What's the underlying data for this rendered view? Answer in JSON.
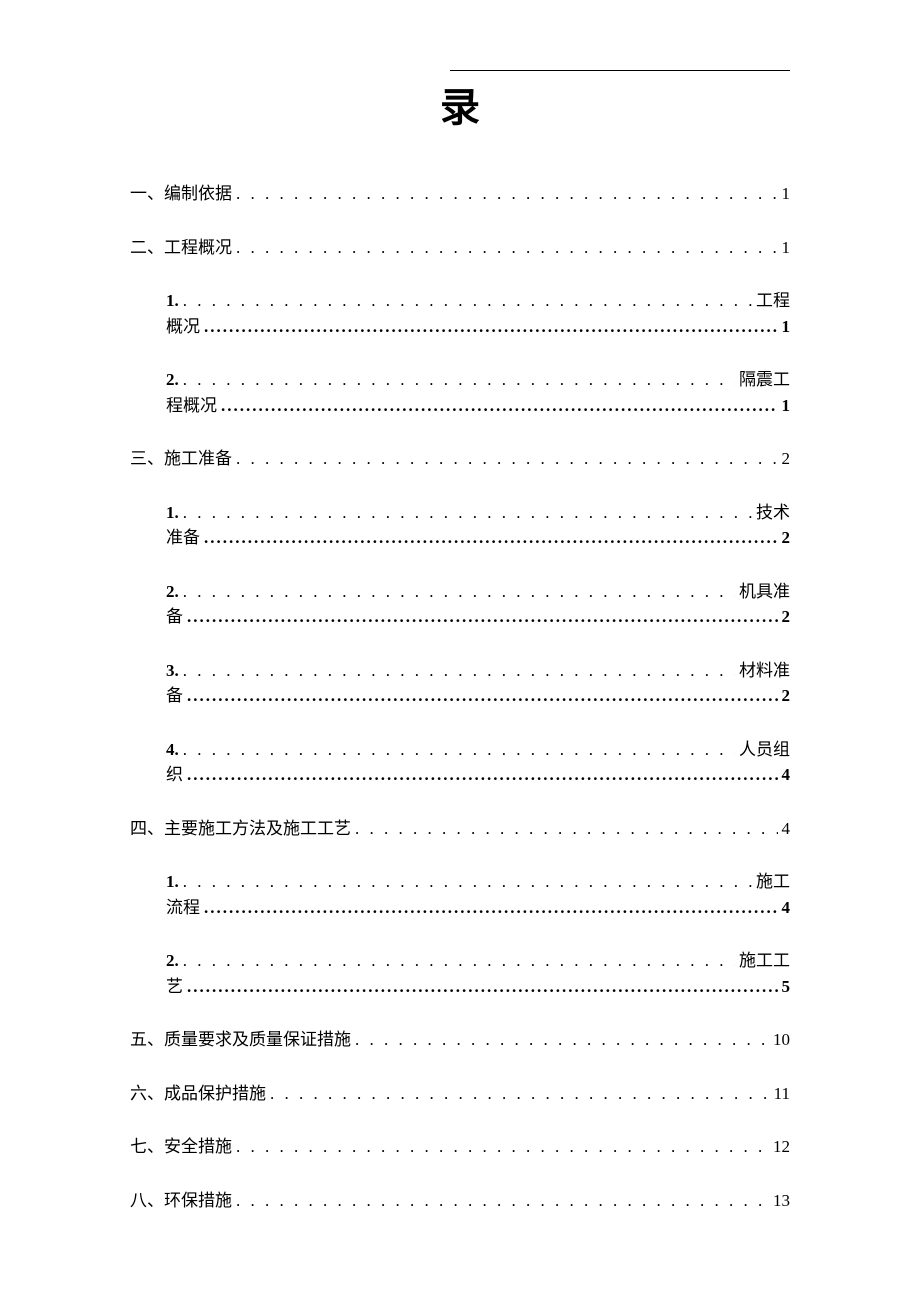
{
  "title": "录",
  "colors": {
    "background": "#ffffff",
    "text": "#000000",
    "rule": "#000000"
  },
  "typography": {
    "title_fontsize": 40,
    "entry_fontsize": 17,
    "font_family": "SimSun"
  },
  "toc": [
    {
      "type": "simple",
      "level": 1,
      "label": "一、编制依据",
      "page": "1"
    },
    {
      "type": "simple",
      "level": 1,
      "label": "二、工程概况",
      "page": "1"
    },
    {
      "type": "wrap",
      "level": 2,
      "num": "1.",
      "suffix": "工程",
      "cont": "概况",
      "page": "1"
    },
    {
      "type": "wrap",
      "level": 2,
      "num": "2.",
      "suffix": "隔震工",
      "cont": "程概况",
      "page": "1"
    },
    {
      "type": "simple",
      "level": 1,
      "label": "三、施工准备",
      "page": "2"
    },
    {
      "type": "wrap",
      "level": 2,
      "num": "1.",
      "suffix": "技术",
      "cont": "准备",
      "page": "2"
    },
    {
      "type": "wrap",
      "level": 2,
      "num": "2.",
      "suffix": "机具准",
      "cont": "备",
      "page": "2"
    },
    {
      "type": "wrap",
      "level": 2,
      "num": "3.",
      "suffix": "材料准",
      "cont": "备",
      "page": "2"
    },
    {
      "type": "wrap",
      "level": 2,
      "num": "4.",
      "suffix": "人员组",
      "cont": "织",
      "page": "4"
    },
    {
      "type": "simple",
      "level": 1,
      "label": "四、主要施工方法及施工工艺",
      "page": "4"
    },
    {
      "type": "wrap",
      "level": 2,
      "num": "1.",
      "suffix": "施工",
      "cont": "流程",
      "page": "4"
    },
    {
      "type": "wrap",
      "level": 2,
      "num": "2.",
      "suffix": "施工工",
      "cont": "艺",
      "page": "5"
    },
    {
      "type": "simple",
      "level": 1,
      "label": "五、质量要求及质量保证措施",
      "page": "10"
    },
    {
      "type": "simple",
      "level": 1,
      "label": "六、成品保护措施",
      "page": "11"
    },
    {
      "type": "simple",
      "level": 1,
      "label": "七、安全措施",
      "page": "12"
    },
    {
      "type": "simple",
      "level": 1,
      "label": "八、环保措施",
      "page": "13"
    }
  ],
  "dots_light": ". . . . . . . . . . . . . . . . . . . . . . . . . . . . . . . . . . . . . . . . . . . . . . . . . . . . . . . . . . . . . . . . . . . . . . . . . . . . . . . .",
  "dots_heavy": "...................................................................................................................................."
}
